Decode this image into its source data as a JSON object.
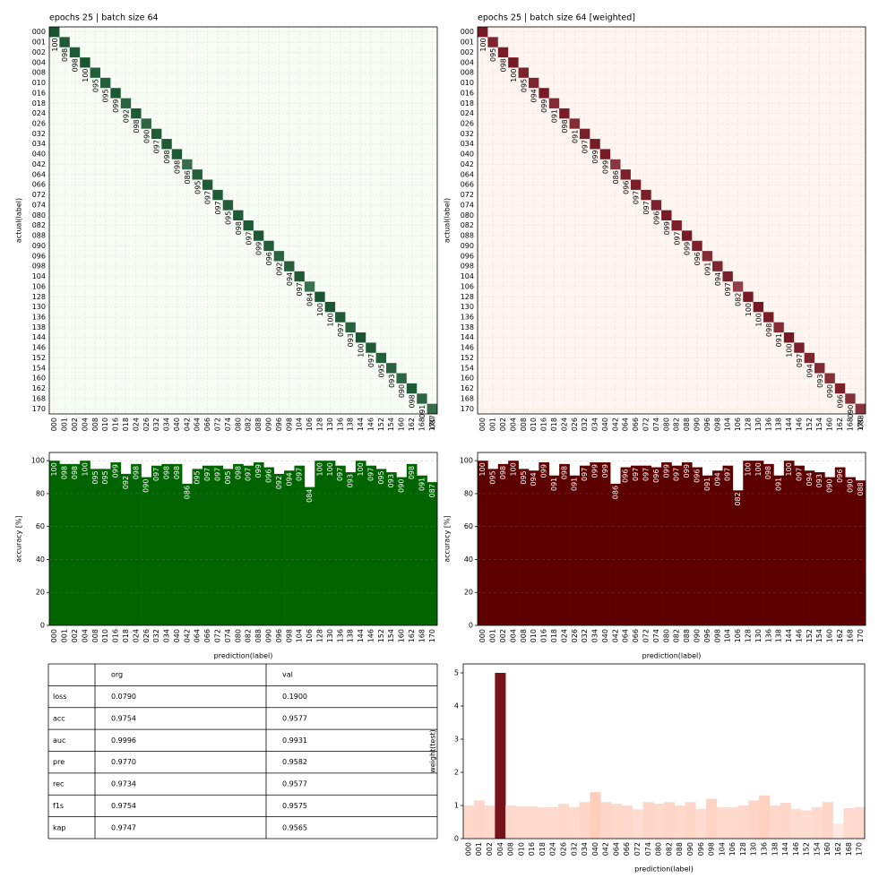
{
  "chart_data": [
    {
      "type": "confusion",
      "title": "epochs 25 | batch size 64",
      "ylabel": "actual(label)",
      "categories": [
        "000",
        "001",
        "002",
        "004",
        "008",
        "010",
        "016",
        "018",
        "024",
        "026",
        "032",
        "034",
        "040",
        "042",
        "064",
        "066",
        "072",
        "074",
        "080",
        "082",
        "088",
        "090",
        "096",
        "098",
        "104",
        "106",
        "128",
        "130",
        "136",
        "138",
        "144",
        "146",
        "152",
        "154",
        "160",
        "162",
        "168",
        "170"
      ],
      "values": [
        100,
        98,
        98,
        100,
        95,
        95,
        99,
        92,
        98,
        90,
        97,
        98,
        98,
        86,
        95,
        97,
        97,
        95,
        98,
        97,
        99,
        96,
        92,
        94,
        97,
        84,
        100,
        100,
        97,
        93,
        100,
        97,
        95,
        93,
        90,
        98,
        91,
        87
      ],
      "value_labels": [
        "100",
        "098",
        "098",
        "100",
        "095",
        "095",
        "099",
        "092",
        "098",
        "090",
        "097",
        "098",
        "098",
        "086",
        "095",
        "097",
        "097",
        "095",
        "098",
        "097",
        "099",
        "096",
        "092",
        "094",
        "097",
        "084",
        "100",
        "100",
        "097",
        "093",
        "100",
        "097",
        "095",
        "093",
        "090",
        "098",
        "091",
        "087"
      ],
      "cmap": [
        "#f7fcf5",
        "#00441b"
      ]
    },
    {
      "type": "confusion",
      "title": "epochs 25 | batch size 64 [weighted]",
      "ylabel": "actual(label)",
      "categories": [
        "000",
        "001",
        "002",
        "004",
        "008",
        "010",
        "016",
        "018",
        "024",
        "026",
        "032",
        "034",
        "040",
        "042",
        "064",
        "066",
        "072",
        "074",
        "080",
        "082",
        "088",
        "090",
        "096",
        "098",
        "104",
        "106",
        "128",
        "130",
        "136",
        "138",
        "144",
        "146",
        "152",
        "154",
        "160",
        "162",
        "168",
        "170"
      ],
      "values": [
        100,
        95,
        98,
        100,
        95,
        94,
        99,
        91,
        98,
        91,
        97,
        99,
        99,
        86,
        96,
        97,
        97,
        96,
        99,
        97,
        99,
        96,
        91,
        94,
        97,
        82,
        100,
        100,
        98,
        91,
        100,
        97,
        94,
        93,
        90,
        96,
        90,
        88
      ],
      "value_labels": [
        "100",
        "095",
        "098",
        "100",
        "095",
        "094",
        "099",
        "091",
        "098",
        "091",
        "097",
        "099",
        "099",
        "086",
        "096",
        "097",
        "097",
        "096",
        "099",
        "097",
        "099",
        "096",
        "091",
        "094",
        "097",
        "082",
        "100",
        "100",
        "098",
        "091",
        "100",
        "097",
        "094",
        "093",
        "090",
        "096",
        "090",
        "088"
      ],
      "cmap": [
        "#fff5f0",
        "#67000d"
      ]
    },
    {
      "type": "bar",
      "ylabel": "accuracy [%]",
      "xlabel": "prediction(label)",
      "categories": [
        "000",
        "001",
        "002",
        "004",
        "008",
        "010",
        "016",
        "018",
        "024",
        "026",
        "032",
        "034",
        "040",
        "042",
        "064",
        "066",
        "072",
        "074",
        "080",
        "082",
        "088",
        "090",
        "096",
        "098",
        "104",
        "106",
        "128",
        "130",
        "136",
        "138",
        "144",
        "146",
        "152",
        "154",
        "160",
        "162",
        "168",
        "170"
      ],
      "values": [
        100,
        98,
        98,
        100,
        95,
        95,
        99,
        92,
        98,
        90,
        97,
        98,
        98,
        86,
        95,
        97,
        97,
        95,
        98,
        97,
        99,
        96,
        92,
        94,
        97,
        84,
        100,
        100,
        97,
        93,
        100,
        97,
        95,
        93,
        90,
        98,
        91,
        87
      ],
      "value_labels": [
        "100",
        "098",
        "098",
        "100",
        "095",
        "095",
        "099",
        "092",
        "098",
        "090",
        "097",
        "098",
        "098",
        "086",
        "095",
        "097",
        "097",
        "095",
        "098",
        "097",
        "099",
        "096",
        "092",
        "094",
        "097",
        "084",
        "100",
        "100",
        "097",
        "093",
        "100",
        "097",
        "095",
        "093",
        "090",
        "098",
        "091",
        "087"
      ],
      "ylim": [
        0,
        105
      ],
      "yticks": [
        0,
        20,
        40,
        60,
        80,
        100
      ],
      "grid": true,
      "color": "#006400"
    },
    {
      "type": "bar",
      "ylabel": "accuracy [%]",
      "xlabel": "prediction(label)",
      "categories": [
        "000",
        "001",
        "002",
        "004",
        "008",
        "010",
        "016",
        "018",
        "024",
        "026",
        "032",
        "034",
        "040",
        "042",
        "064",
        "066",
        "072",
        "074",
        "080",
        "082",
        "088",
        "090",
        "096",
        "098",
        "104",
        "106",
        "128",
        "130",
        "136",
        "138",
        "144",
        "146",
        "152",
        "154",
        "160",
        "162",
        "168",
        "170"
      ],
      "values": [
        100,
        95,
        98,
        100,
        95,
        94,
        99,
        91,
        98,
        91,
        97,
        99,
        99,
        86,
        96,
        97,
        97,
        96,
        99,
        97,
        99,
        96,
        91,
        94,
        97,
        82,
        100,
        100,
        98,
        91,
        100,
        97,
        94,
        93,
        90,
        96,
        90,
        88
      ],
      "value_labels": [
        "100",
        "095",
        "098",
        "100",
        "095",
        "094",
        "099",
        "091",
        "098",
        "091",
        "097",
        "099",
        "099",
        "086",
        "096",
        "097",
        "097",
        "096",
        "099",
        "097",
        "099",
        "096",
        "091",
        "094",
        "097",
        "082",
        "100",
        "100",
        "098",
        "091",
        "100",
        "097",
        "094",
        "093",
        "090",
        "096",
        "090",
        "088"
      ],
      "ylim": [
        0,
        105
      ],
      "yticks": [
        0,
        20,
        40,
        60,
        80,
        100
      ],
      "grid": true,
      "color": "#5c0000"
    },
    {
      "type": "bar",
      "ylabel": "weight(test)",
      "xlabel": "prediction(label)",
      "categories": [
        "000",
        "001",
        "002",
        "004",
        "008",
        "010",
        "016",
        "018",
        "024",
        "026",
        "032",
        "034",
        "040",
        "042",
        "064",
        "066",
        "072",
        "074",
        "080",
        "082",
        "088",
        "090",
        "096",
        "098",
        "104",
        "106",
        "128",
        "130",
        "136",
        "138",
        "144",
        "146",
        "152",
        "154",
        "160",
        "162",
        "168",
        "170"
      ],
      "values": [
        1.0,
        1.15,
        1.0,
        5.0,
        1.0,
        0.97,
        0.97,
        0.95,
        0.95,
        1.05,
        0.95,
        1.1,
        1.4,
        1.1,
        1.05,
        1.0,
        0.88,
        1.1,
        1.05,
        1.1,
        1.0,
        1.1,
        0.9,
        1.2,
        0.95,
        0.95,
        1.0,
        1.15,
        1.3,
        1.0,
        1.08,
        0.9,
        0.85,
        0.95,
        1.1,
        0.45,
        0.92,
        0.95
      ],
      "ylim": [
        0,
        5.27
      ],
      "yticks": [
        0,
        1,
        2,
        3,
        4,
        5
      ],
      "grid": false,
      "cmap": [
        "#fff5f0",
        "#fcab8f",
        "#67000d"
      ]
    }
  ],
  "table": {
    "header": [
      "org",
      "val"
    ],
    "rows": [
      [
        "loss",
        "0.0790",
        "0.1900"
      ],
      [
        "acc",
        "0.9754",
        "0.9577"
      ],
      [
        "auc",
        "0.9996",
        "0.9931"
      ],
      [
        "pre",
        "0.9770",
        "0.9582"
      ],
      [
        "rec",
        "0.9734",
        "0.9577"
      ],
      [
        "f1s",
        "0.9754",
        "0.9575"
      ],
      [
        "kap",
        "0.9747",
        "0.9565"
      ]
    ]
  }
}
